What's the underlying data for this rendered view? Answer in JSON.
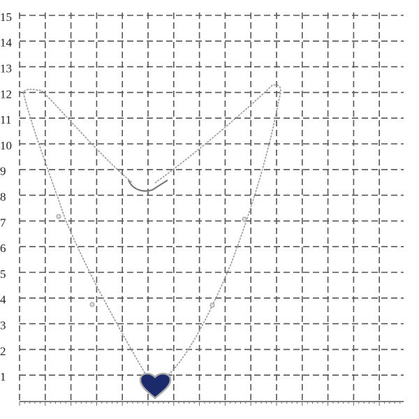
{
  "scale": {
    "labels": [
      "15",
      "14",
      "13",
      "12",
      "11",
      "10",
      "9",
      "8",
      "7",
      "6",
      "5",
      "4",
      "3",
      "2",
      "1"
    ]
  }
}
